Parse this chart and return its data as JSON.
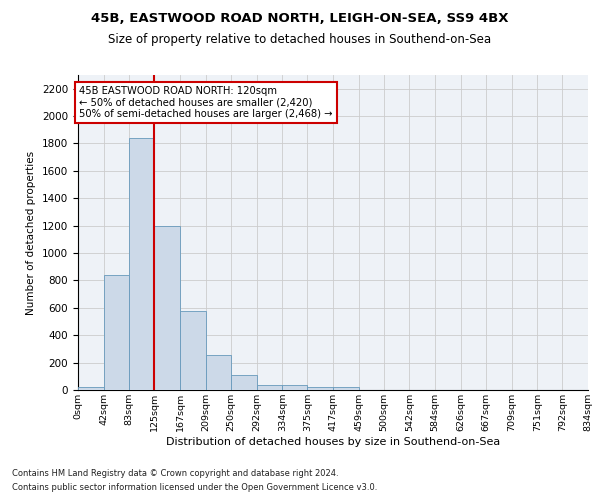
{
  "title": "45B, EASTWOOD ROAD NORTH, LEIGH-ON-SEA, SS9 4BX",
  "subtitle": "Size of property relative to detached houses in Southend-on-Sea",
  "xlabel": "Distribution of detached houses by size in Southend-on-Sea",
  "ylabel": "Number of detached properties",
  "footnote1": "Contains HM Land Registry data © Crown copyright and database right 2024.",
  "footnote2": "Contains public sector information licensed under the Open Government Licence v3.0.",
  "bin_edges": [
    0,
    42,
    83,
    125,
    167,
    209,
    250,
    292,
    334,
    375,
    417,
    459,
    500,
    542,
    584,
    626,
    667,
    709,
    751,
    792,
    834
  ],
  "bar_heights": [
    20,
    840,
    1840,
    1200,
    580,
    255,
    110,
    40,
    35,
    25,
    20,
    0,
    0,
    0,
    0,
    0,
    0,
    0,
    0,
    0
  ],
  "bar_color": "#ccd9e8",
  "bar_edge_color": "#6699bb",
  "grid_color": "#cccccc",
  "vline_x": 125,
  "vline_color": "#cc0000",
  "annotation_text": "45B EASTWOOD ROAD NORTH: 120sqm\n← 50% of detached houses are smaller (2,420)\n50% of semi-detached houses are larger (2,468) →",
  "annotation_box_color": "#ffffff",
  "annotation_box_edge": "#cc0000",
  "ylim": [
    0,
    2300
  ],
  "yticks": [
    0,
    200,
    400,
    600,
    800,
    1000,
    1200,
    1400,
    1600,
    1800,
    2000,
    2200
  ],
  "tick_labels": [
    "0sqm",
    "42sqm",
    "83sqm",
    "125sqm",
    "167sqm",
    "209sqm",
    "250sqm",
    "292sqm",
    "334sqm",
    "375sqm",
    "417sqm",
    "459sqm",
    "500sqm",
    "542sqm",
    "584sqm",
    "626sqm",
    "667sqm",
    "709sqm",
    "751sqm",
    "792sqm",
    "834sqm"
  ],
  "bg_color": "#eef2f7"
}
